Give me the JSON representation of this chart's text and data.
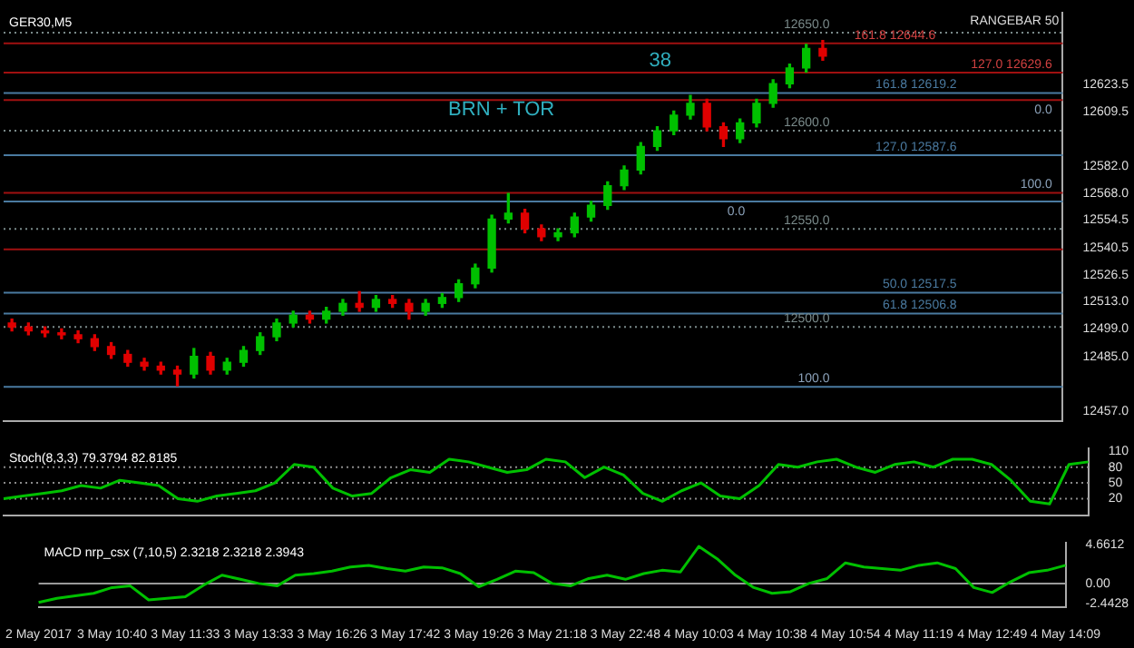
{
  "chart_data": [
    {
      "type": "candlestick",
      "title": "GER30,M5",
      "annotations": [
        "BRN + TOR",
        "38",
        "RANGEBAR 50",
        {
          "text": "0.0",
          "y": 12615.6
        },
        {
          "text": "100.0",
          "y": 12568.4
        },
        {
          "text": "0.0",
          "y": 12564
        },
        {
          "text": "100.0",
          "y": 12469.5
        }
      ],
      "categories": [
        null,
        null,
        null,
        null,
        null,
        null,
        null,
        null,
        null,
        null,
        null,
        null,
        null,
        null,
        null,
        null,
        null,
        null,
        null,
        null,
        null,
        null,
        null,
        null,
        null,
        null,
        null,
        null,
        null,
        null,
        null,
        null,
        null,
        null,
        null,
        null,
        null,
        null,
        null,
        null,
        null,
        null,
        null,
        null,
        null,
        null,
        null,
        null,
        null,
        null,
        null,
        null,
        null,
        null,
        null,
        null,
        null,
        null,
        null,
        null,
        null,
        null,
        null,
        null
      ],
      "ohlc": [
        [
          12502,
          12504,
          12498,
          12500
        ],
        [
          12500,
          12502,
          12496,
          12498
        ],
        [
          12498,
          12500,
          12495,
          12497
        ],
        [
          12497,
          12499,
          12494,
          12496
        ],
        [
          12496,
          12498,
          12492,
          12494
        ],
        [
          12494,
          12496,
          12488,
          12490
        ],
        [
          12490,
          12492,
          12484,
          12486
        ],
        [
          12486,
          12488,
          12480,
          12482
        ],
        [
          12482,
          12484,
          12478,
          12480
        ],
        [
          12480,
          12482,
          12476,
          12478
        ],
        [
          12478,
          12480,
          12470,
          12476
        ],
        [
          12476,
          12489,
          12474,
          12485
        ],
        [
          12485,
          12487,
          12476,
          12478
        ],
        [
          12478,
          12484,
          12476,
          12482
        ],
        [
          12482,
          12490,
          12480,
          12488
        ],
        [
          12488,
          12497,
          12486,
          12495
        ],
        [
          12495,
          12504,
          12493,
          12502
        ],
        [
          12502,
          12508,
          12500,
          12506
        ],
        [
          12506,
          12508,
          12502,
          12504
        ],
        [
          12504,
          12510,
          12502,
          12508
        ],
        [
          12508,
          12514,
          12506,
          12512
        ],
        [
          12512,
          12518,
          12508,
          12510
        ],
        [
          12510,
          12516,
          12508,
          12514
        ],
        [
          12514,
          12516,
          12510,
          12512
        ],
        [
          12512,
          12514,
          12504,
          12508
        ],
        [
          12508,
          12514,
          12506,
          12512
        ],
        [
          12512,
          12517,
          12510,
          12515
        ],
        [
          12515,
          12524,
          12513,
          12522
        ],
        [
          12522,
          12532,
          12520,
          12530
        ],
        [
          12530,
          12557,
          12528,
          12555
        ],
        [
          12555,
          12568,
          12553,
          12558
        ],
        [
          12558,
          12560,
          12548,
          12550
        ],
        [
          12550,
          12552,
          12544,
          12546
        ],
        [
          12546,
          12550,
          12544,
          12548
        ],
        [
          12548,
          12558,
          12546,
          12556
        ],
        [
          12556,
          12564,
          12554,
          12562
        ],
        [
          12562,
          12574,
          12560,
          12572
        ],
        [
          12572,
          12582,
          12570,
          12580
        ],
        [
          12580,
          12594,
          12578,
          12592
        ],
        [
          12592,
          12602,
          12590,
          12600
        ],
        [
          12600,
          12610,
          12598,
          12608
        ],
        [
          12608,
          12618,
          12606,
          12614
        ],
        [
          12614,
          12616,
          12600,
          12602
        ],
        [
          12602,
          12604,
          12592,
          12596
        ],
        [
          12596,
          12606,
          12594,
          12604
        ],
        [
          12604,
          12616,
          12602,
          12614
        ],
        [
          12614,
          12626,
          12612,
          12624
        ],
        [
          12624,
          12634,
          12622,
          12632
        ],
        [
          12632,
          12644,
          12630,
          12642
        ],
        [
          12642,
          12646,
          12636,
          12638
        ],
        null,
        null,
        null,
        null,
        null,
        null,
        null,
        null,
        null,
        null,
        null,
        null,
        null,
        null
      ],
      "ylim": [
        12452,
        12660
      ],
      "yticks": [
        {
          "value": 12623.5,
          "label": "12623.5"
        },
        {
          "value": 12609.5,
          "label": "12609.5"
        },
        {
          "value": 12582,
          "label": "12582.0"
        },
        {
          "value": 12568,
          "label": "12568.0"
        },
        {
          "value": 12554.5,
          "label": "12554.5"
        },
        {
          "value": 12540.5,
          "label": "12540.5"
        },
        {
          "value": 12526.5,
          "label": "12526.5"
        },
        {
          "value": 12513,
          "label": "12513.0"
        },
        {
          "value": 12499,
          "label": "12499.0"
        },
        {
          "value": 12485,
          "label": "12485.0"
        },
        {
          "value": 12457,
          "label": "12457.0"
        }
      ],
      "tick_labels": "y",
      "ref_lines": [
        {
          "axis": "y",
          "value": 12650,
          "label": "12650.0",
          "color": "#7a8a8a",
          "line_style": "dotted"
        },
        {
          "axis": "y",
          "value": 12644.6,
          "label": "161.8 12644.6",
          "color": "#a01010",
          "line_style": "solid"
        },
        {
          "axis": "y",
          "value": 12629.6,
          "label": "127.0 12629.6",
          "color": "#a01010",
          "line_style": "solid"
        },
        {
          "axis": "y",
          "value": 12619.2,
          "label": "161.8 12619.2",
          "color": "#4a7aa0",
          "line_style": "solid"
        },
        {
          "axis": "y",
          "value": 12615.6,
          "color": "#a01010",
          "line_style": "solid"
        },
        {
          "axis": "y",
          "value": 12600,
          "label": "12600.0",
          "color": "#7a8a8a",
          "line_style": "dotted"
        },
        {
          "axis": "y",
          "value": 12587.6,
          "label": "127.0 12587.6",
          "color": "#4a7aa0",
          "line_style": "solid"
        },
        {
          "axis": "y",
          "value": 12568.4,
          "color": "#a01010",
          "line_style": "solid"
        },
        {
          "axis": "y",
          "value": 12564,
          "color": "#4a7aa0",
          "line_style": "solid"
        },
        {
          "axis": "y",
          "value": 12550,
          "label": "12550.0",
          "color": "#7a8a8a",
          "line_style": "dotted"
        },
        {
          "axis": "y",
          "value": 12539.5,
          "color": "#a01010",
          "line_style": "solid"
        },
        {
          "axis": "y",
          "value": 12517.5,
          "label": "50.0 12517.5",
          "color": "#4a7aa0",
          "line_style": "solid"
        },
        {
          "axis": "y",
          "value": 12506.8,
          "label": "61.8 12506.8",
          "color": "#4a7aa0",
          "line_style": "solid"
        },
        {
          "axis": "y",
          "value": 12500,
          "label": "12500.0",
          "color": "#7a8a8a",
          "line_style": "dotted"
        },
        {
          "axis": "y",
          "value": 12469.5,
          "color": "#4a7aa0",
          "line_style": "solid"
        }
      ]
    },
    {
      "type": "line",
      "title": "Stoch(8,3,3) 79.3794 82.8185",
      "categories": [
        null,
        null,
        null,
        null,
        null,
        null,
        null,
        null,
        null,
        null,
        null,
        null,
        null,
        null,
        null,
        null,
        null,
        null,
        null,
        null,
        null,
        null,
        null,
        null,
        null,
        null,
        null,
        null,
        null,
        null,
        null,
        null,
        null,
        null,
        null,
        null,
        null,
        null,
        null,
        null,
        null,
        null,
        null,
        null,
        null,
        null,
        null,
        null,
        null,
        null,
        null,
        null,
        null,
        null,
        null,
        null,
        null
      ],
      "series": [
        {
          "color": "#00c000",
          "values": [
            20,
            25,
            30,
            35,
            45,
            40,
            55,
            50,
            45,
            20,
            15,
            25,
            30,
            35,
            50,
            85,
            80,
            40,
            25,
            30,
            60,
            75,
            70,
            95,
            90,
            80,
            70,
            75,
            95,
            90,
            60,
            80,
            65,
            30,
            15,
            35,
            50,
            25,
            20,
            45,
            85,
            80,
            90,
            95,
            80,
            70,
            85,
            90,
            80,
            95,
            95,
            85,
            55,
            15,
            10,
            85,
            90
          ]
        }
      ],
      "ylim": [
        -12,
        115
      ],
      "yticks": [
        110,
        80,
        50,
        20
      ],
      "tick_labels": "y",
      "ref_lines": [
        {
          "axis": "y",
          "value": 80,
          "color": "#8a8a8a",
          "line_style": "dotted"
        },
        {
          "axis": "y",
          "value": 50,
          "color": "#8a8a8a",
          "line_style": "dotted"
        },
        {
          "axis": "y",
          "value": 20,
          "color": "#8a8a8a",
          "line_style": "dotted"
        }
      ]
    },
    {
      "type": "line",
      "title": "MACD nrp_csx (7,10,5) 2.3218 2.3218 2.3943",
      "categories": [
        "2 May 2017",
        null,
        null,
        null,
        "3 May 10:40",
        null,
        null,
        null,
        "3 May 11:33",
        null,
        null,
        null,
        "3 May 13:33",
        null,
        null,
        null,
        "3 May 16:26",
        null,
        null,
        null,
        "3 May 17:42",
        null,
        null,
        null,
        "3 May 19:26",
        null,
        null,
        null,
        "3 May 21:18",
        null,
        null,
        null,
        "3 May 22:48",
        null,
        null,
        null,
        "4 May 10:03",
        null,
        null,
        null,
        "4 May 10:38",
        null,
        null,
        null,
        "4 May 10:54",
        null,
        null,
        null,
        "4 May 11:19",
        null,
        null,
        null,
        "4 May 12:49",
        null,
        null,
        null,
        "4 May 14:09"
      ],
      "series": [
        {
          "color": "#00c000",
          "values": [
            -2.3,
            -1.8,
            -1.5,
            -1.2,
            -0.5,
            -0.3,
            -2,
            -1.8,
            -1.6,
            -0.2,
            1,
            0.5,
            0,
            -0.3,
            1,
            1.2,
            1.5,
            2,
            2.2,
            1.8,
            1.5,
            2,
            1.9,
            1.2,
            -0.4,
            0.5,
            1.5,
            1.3,
            0,
            -0.3,
            0.6,
            1,
            0.5,
            1.2,
            1.6,
            1.4,
            4.5,
            3,
            1,
            -0.5,
            -1.2,
            -1,
            0,
            0.6,
            2.5,
            2,
            1.8,
            1.6,
            2.2,
            2.5,
            1.8,
            -0.5,
            -1.1,
            0.2,
            1.3,
            1.6,
            2.2
          ]
        }
      ],
      "ylim": [
        -2.9,
        4.9
      ],
      "yticks": [
        4.6612,
        {
          "value": 0,
          "label": "0.00"
        },
        -2.4428
      ],
      "ref_lines": [
        {
          "axis": "y",
          "value": 0,
          "color": "#9a9a9a",
          "line_style": "solid"
        }
      ]
    }
  ]
}
